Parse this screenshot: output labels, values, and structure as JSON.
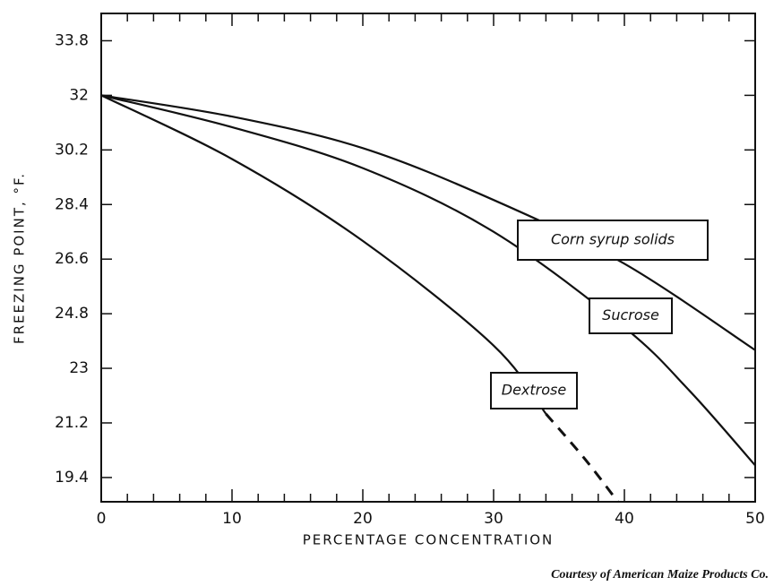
{
  "chart_data": {
    "type": "line",
    "x_label": "PERCENTAGE CONCENTRATION",
    "y_label": "FREEZING POINT, °F.",
    "xlim": [
      0,
      50
    ],
    "xticks": [
      0,
      10,
      20,
      30,
      40,
      50
    ],
    "ylim": [
      18.6,
      34.7
    ],
    "yticks": [
      19.4,
      21.2,
      23.0,
      24.8,
      26.6,
      28.4,
      30.2,
      32.0,
      33.8
    ],
    "color": "#111111",
    "series": [
      {
        "name": "Corn syrup solids",
        "x": [
          0,
          10,
          20,
          30,
          40,
          50
        ],
        "values": [
          32.0,
          31.3,
          30.26,
          28.55,
          26.45,
          23.6
        ]
      },
      {
        "name": "Sucrose",
        "x": [
          0,
          10,
          20,
          30,
          40,
          45,
          50
        ],
        "values": [
          32.0,
          30.95,
          29.6,
          27.5,
          24.35,
          22.25,
          19.8
        ]
      },
      {
        "name": "Dextrose",
        "x": [
          0,
          10,
          20,
          30,
          34,
          37,
          39.5
        ],
        "values": [
          32.0,
          29.9,
          27.2,
          23.75,
          21.5,
          20.0,
          18.6
        ],
        "dashed_from": 34
      }
    ],
    "credit": "Courtesy of American Maize Products Co."
  }
}
